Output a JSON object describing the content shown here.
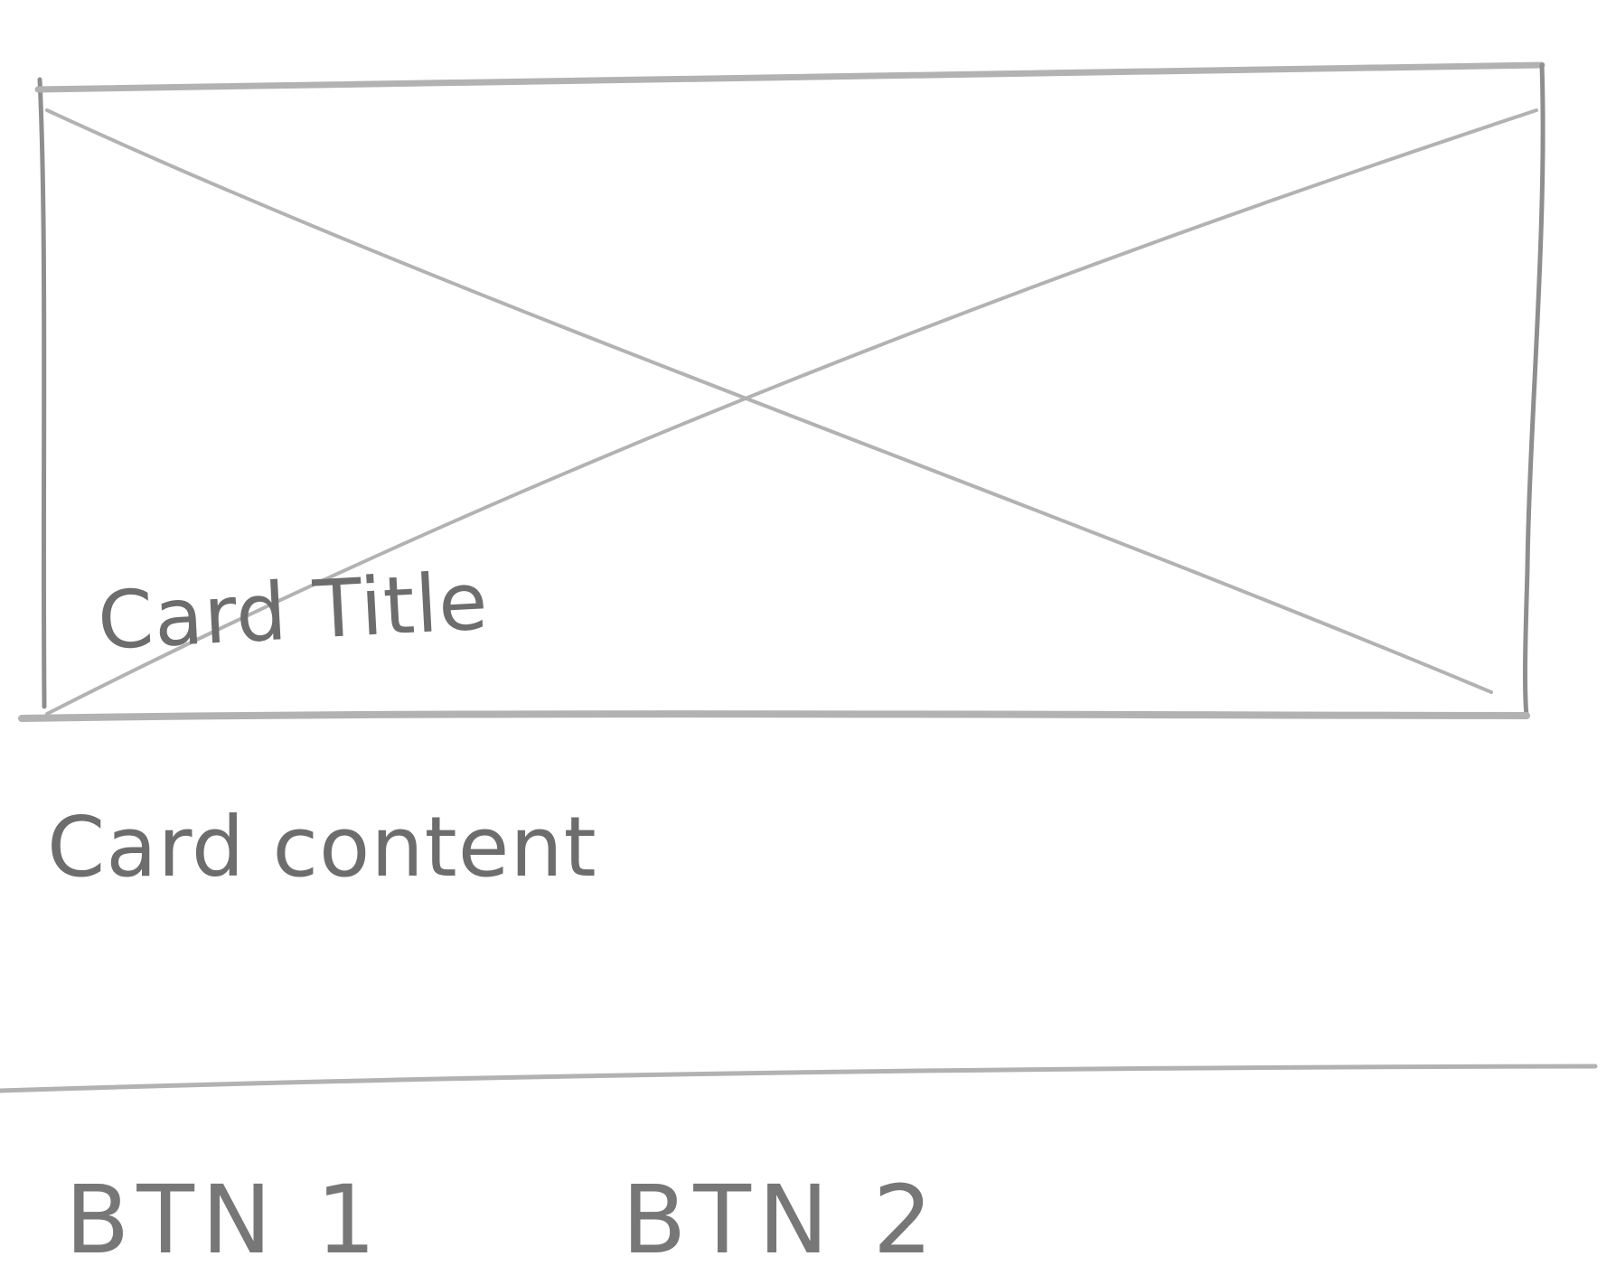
{
  "card": {
    "title": "Card Title",
    "content": "Card content",
    "image_icon": "image-placeholder-icon"
  },
  "actions": {
    "btn1_label": "BTN 1",
    "btn2_label": "BTN 2"
  },
  "colors": {
    "pencil": "#8e8e8e",
    "pencil_light": "#b2b2b2",
    "text": "#6d6d6d",
    "background": "#ffffff"
  }
}
